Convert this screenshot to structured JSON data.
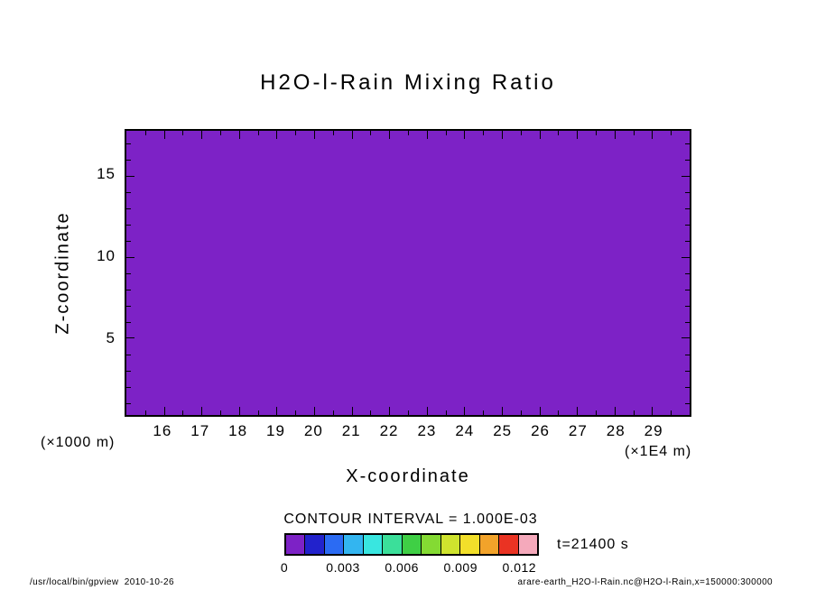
{
  "chart_data": {
    "type": "heatmap",
    "title": "H2O-l-Rain Mixing Ratio",
    "xlabel": "X-coordinate",
    "ylabel": "Z-coordinate",
    "x_unit_label": "(×1E4 m)",
    "y_unit_label": "(×1000 m)",
    "xlim": [
      15,
      30
    ],
    "ylim": [
      0.25,
      17.75
    ],
    "x_major_ticks": [
      16,
      17,
      18,
      19,
      20,
      21,
      22,
      23,
      24,
      25,
      26,
      27,
      28,
      29
    ],
    "x_minor_step": 0.5,
    "y_major_ticks": [
      5,
      10,
      15
    ],
    "y_minor_step": 1,
    "field": {
      "description": "Uniform field: every grid value falls in the lowest tone bin (below first contour level), so the whole domain is filled with the first colorbar color.",
      "uniform_bin_min": 0,
      "uniform_bin_max": 0.001
    },
    "contour_interval": 0.001,
    "contour_interval_text": "CONTOUR INTERVAL = 1.000E-03",
    "time_seconds": 21400,
    "time_text": "t=21400 s",
    "fill_color": "#7d22c6",
    "frame_color": "#000000",
    "legend_position": "bottom",
    "grid": false,
    "colorbar": {
      "cell_colors": [
        "#7d22c6",
        "#2222cc",
        "#2b6bf3",
        "#33b5f0",
        "#39e6e0",
        "#3bdf9a",
        "#3fcf45",
        "#84da33",
        "#cfe32e",
        "#f2df2a",
        "#f2a32a",
        "#ea3323",
        "#f5a9bb"
      ],
      "tick_labels": [
        "0",
        "0.003",
        "0.006",
        "0.009",
        "0.012"
      ],
      "tick_cell_boundaries": [
        0,
        3,
        6,
        9,
        12
      ],
      "bin_width": 0.001
    }
  },
  "footer": {
    "left": "/usr/local/bin/gpview  2010-10-26",
    "right": "arare-earth_H2O-l-Rain.nc@H2O-l-Rain,x=150000:300000"
  }
}
